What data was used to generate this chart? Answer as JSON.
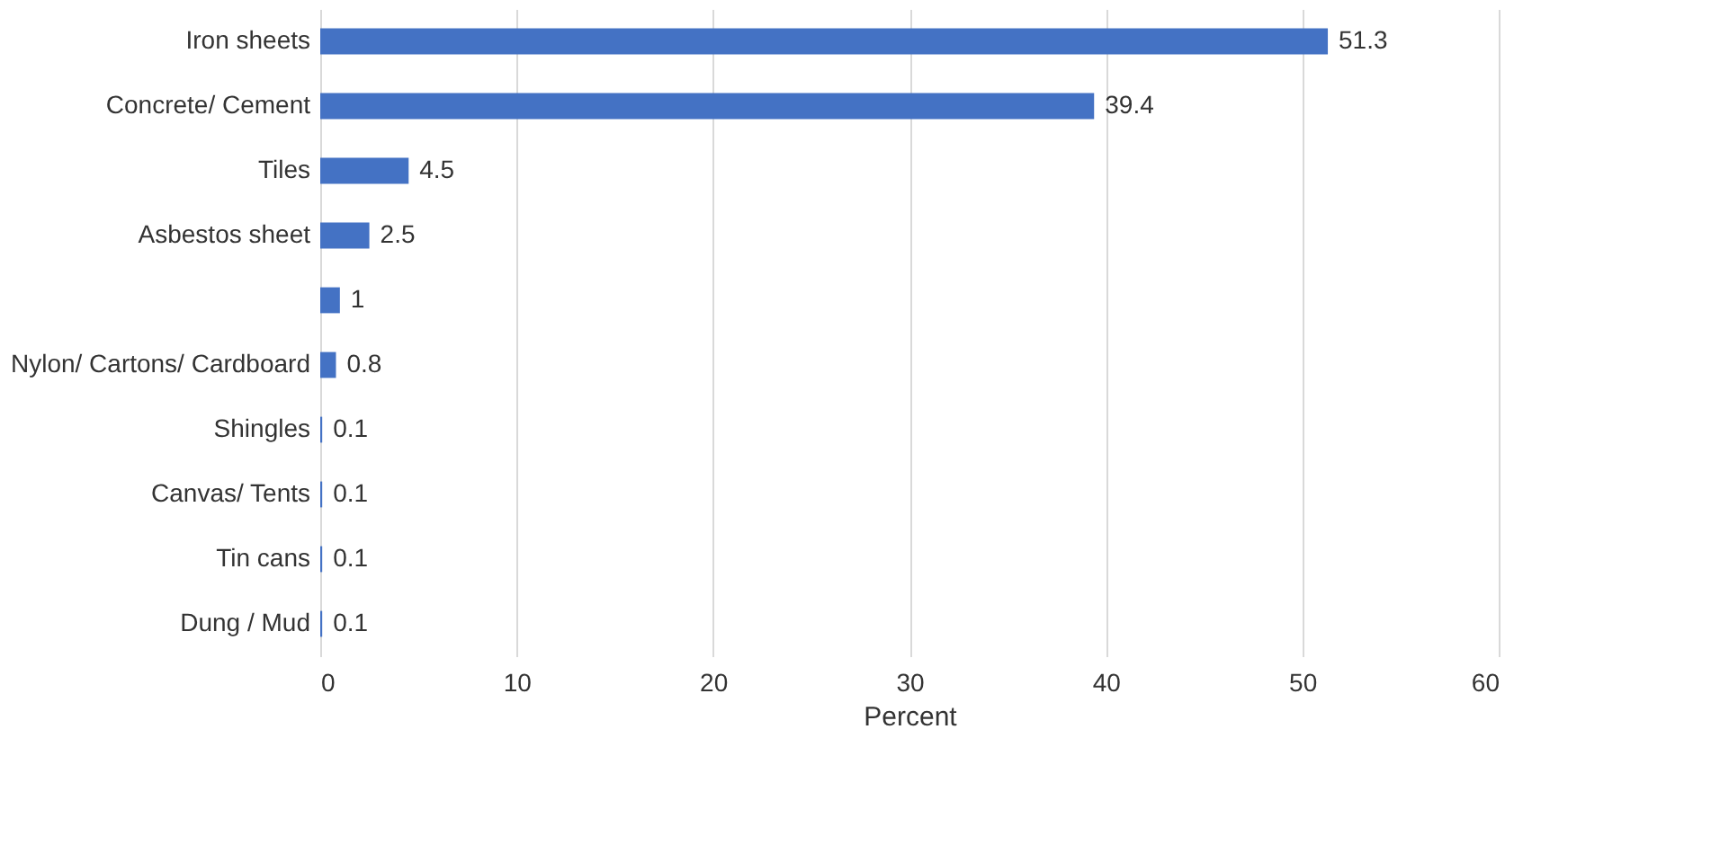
{
  "chart_data": {
    "type": "bar",
    "orientation": "horizontal",
    "xlabel": "Percent",
    "categories": [
      "Iron sheets",
      "Concrete/ Cement",
      "Tiles",
      "Asbestos sheet",
      null,
      "Nylon/ Cartons/ Cardboard",
      "Shingles",
      "Canvas/ Tents",
      "Tin cans",
      "Dung / Mud"
    ],
    "values": [
      51.3,
      39.4,
      4.5,
      2.5,
      1,
      0.8,
      0.1,
      0.1,
      0.1,
      0.1
    ],
    "color": "#4472c4",
    "xlim": [
      0,
      60
    ],
    "xticks": [
      0,
      10,
      20,
      30,
      40,
      50,
      60
    ],
    "grid": "x",
    "data_labels": true
  }
}
